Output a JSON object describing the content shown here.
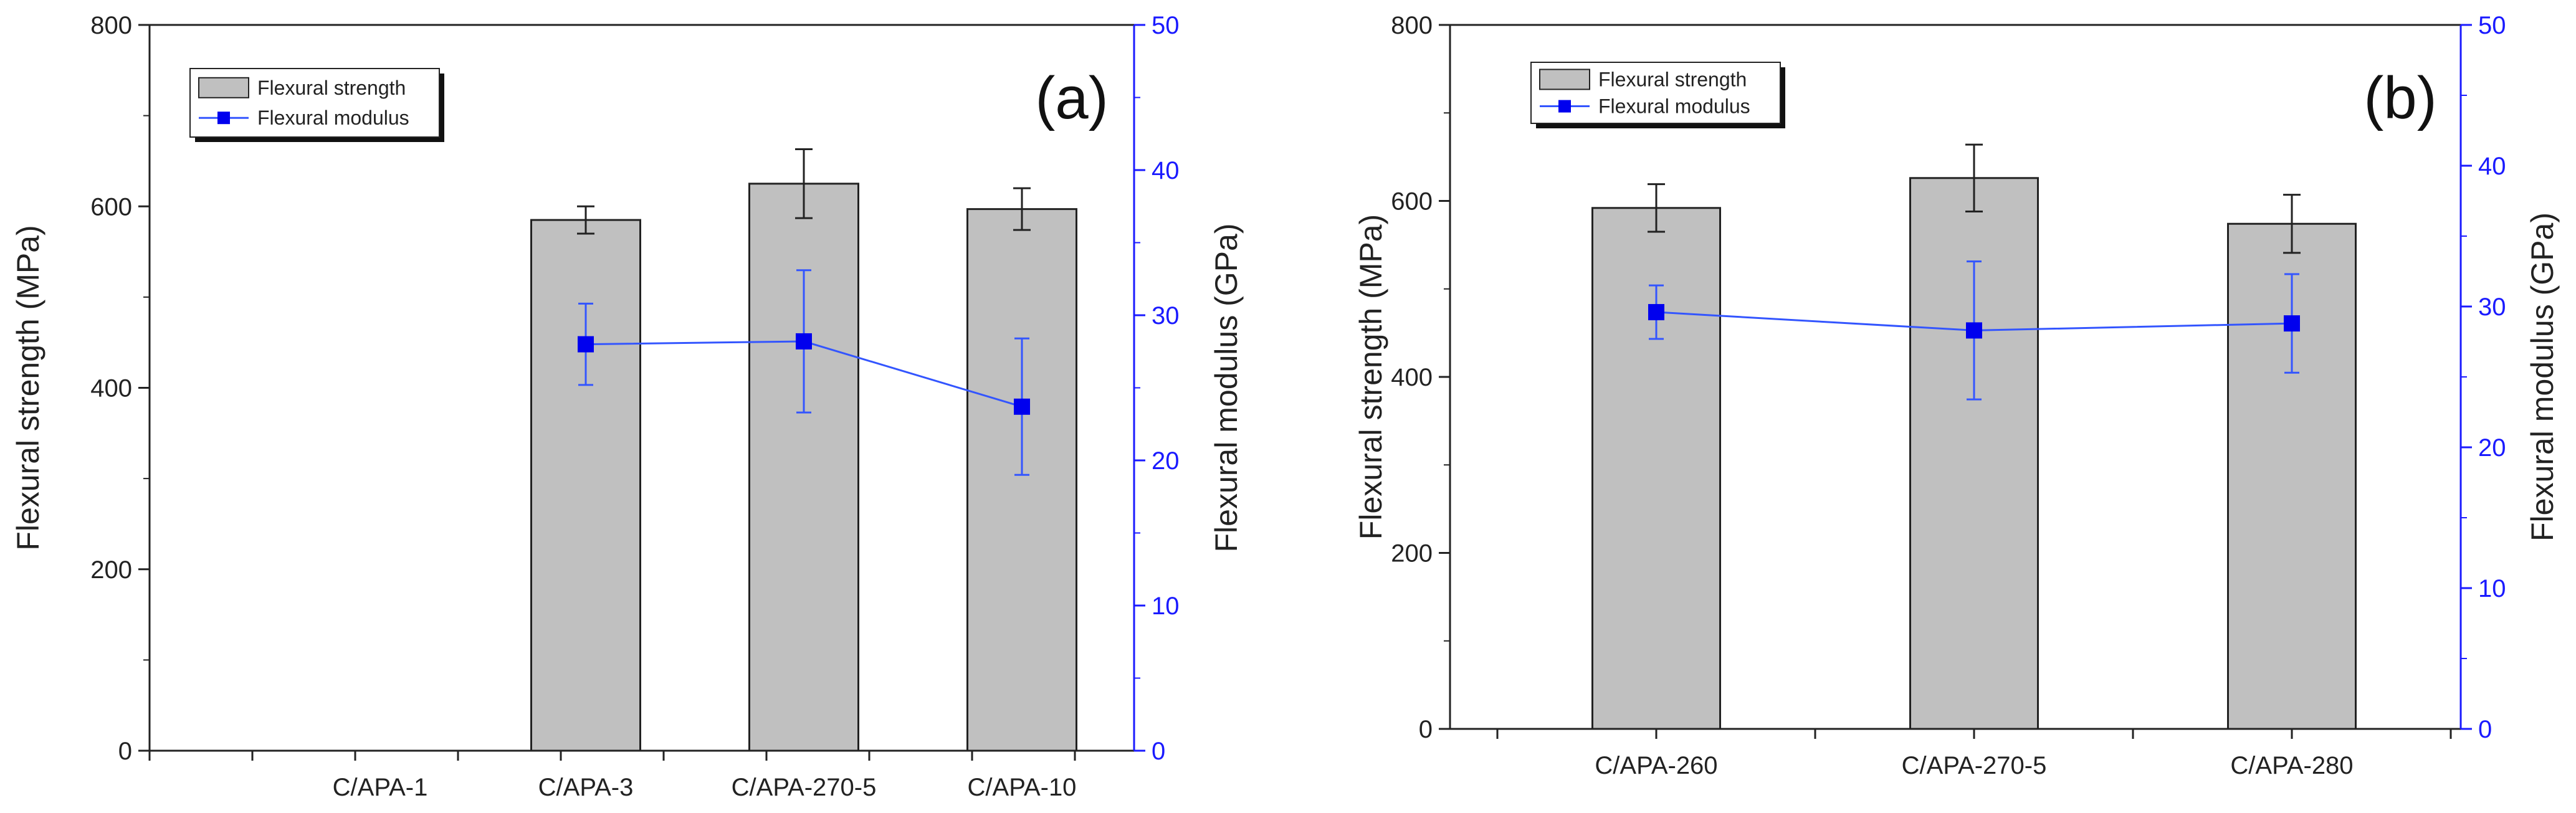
{
  "colors": {
    "bar_fill": "#c0c0c0",
    "bar_stroke": "#222222",
    "modulus_line": "#3355ff",
    "modulus_marker": "#0000ee",
    "right_axis": "#1a1aff",
    "axis": "#222222"
  },
  "chart_data": [
    {
      "type": "bar",
      "panel_label": "(a)",
      "categories": [
        "C/APA-1",
        "C/APA-3",
        "C/APA-270-5",
        "C/APA-10"
      ],
      "series": [
        {
          "name": "Flexural strength",
          "type": "bar",
          "axis": "left",
          "values": [
            null,
            585,
            625,
            597
          ],
          "errors": [
            null,
            15,
            38,
            23
          ]
        },
        {
          "name": "Flexural modulus",
          "type": "line",
          "axis": "right",
          "values": [
            null,
            28.0,
            28.2,
            23.7
          ],
          "errors": [
            null,
            2.8,
            4.9,
            4.7
          ]
        }
      ],
      "ylabel": "Flexural strength (MPa)",
      "ylabel_right": "Flexural modulus (GPa)",
      "ylim": [
        0,
        800
      ],
      "ylim_right": [
        0,
        50
      ],
      "yticks": [
        "0",
        "200",
        "400",
        "600",
        "800"
      ],
      "yticks_right": [
        "0",
        "10",
        "20",
        "30",
        "40",
        "50"
      ],
      "legend": [
        "Flexural strength",
        "Flexural modulus"
      ],
      "legend_position": "top-left"
    },
    {
      "type": "bar",
      "panel_label": "(b)",
      "categories": [
        "C/APA-260",
        "C/APA-270-5",
        "C/APA-280"
      ],
      "series": [
        {
          "name": "Flexural strength",
          "type": "bar",
          "axis": "left",
          "values": [
            592,
            626,
            574
          ],
          "errors": [
            27,
            38,
            33
          ]
        },
        {
          "name": "Flexural modulus",
          "type": "line",
          "axis": "right",
          "values": [
            29.6,
            28.3,
            28.8
          ],
          "errors": [
            1.9,
            4.9,
            3.5
          ]
        }
      ],
      "ylabel": "Flexural strength (MPa)",
      "ylabel_right": "Flexural modulus (GPa)",
      "ylim": [
        0,
        800
      ],
      "ylim_right": [
        0,
        50
      ],
      "yticks": [
        "0",
        "200",
        "400",
        "600",
        "800"
      ],
      "yticks_right": [
        "0",
        "10",
        "20",
        "30",
        "40",
        "50"
      ],
      "legend": [
        "Flexural strength",
        "Flexural modulus"
      ],
      "legend_position": "top-left"
    }
  ]
}
